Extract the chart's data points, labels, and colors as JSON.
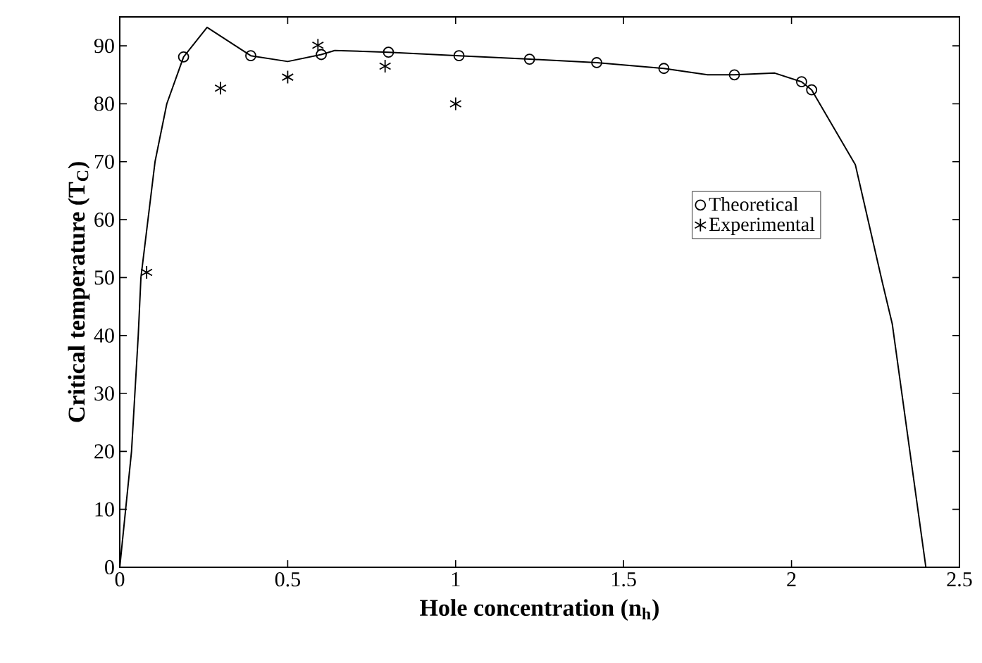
{
  "chart_data": {
    "type": "scatter",
    "xlabel": "Hole concentration (n$_{h}$)",
    "ylabel": "Critical temperature (T$_{C}$)",
    "xlim": [
      0,
      2.5
    ],
    "ylim": [
      0,
      95
    ],
    "xticks": [
      0,
      0.5,
      1,
      1.5,
      2,
      2.5
    ],
    "yticks": [
      0,
      10,
      20,
      30,
      40,
      50,
      60,
      70,
      80,
      90
    ],
    "legend": "right",
    "grid": false,
    "series": [
      {
        "type": "line",
        "color": "#000000",
        "marker": "none",
        "x": [
          0,
          0.035,
          0.055,
          0.063,
          0.105,
          0.14,
          0.19,
          0.26,
          0.39,
          0.5,
          0.6,
          0.64,
          0.8,
          1.01,
          1.22,
          1.42,
          1.62,
          1.75,
          1.83,
          1.95,
          2.03,
          2.06,
          2.19,
          2.27,
          2.3,
          2.4
        ],
        "values": [
          0,
          20,
          40,
          50,
          70,
          80,
          88.1,
          93.2,
          88.3,
          87.3,
          88.5,
          89.2,
          88.9,
          88.3,
          87.7,
          87.1,
          86.1,
          85.0,
          85.0,
          85.3,
          83.8,
          82.4,
          69.5,
          49.3,
          42,
          0
        ]
      },
      {
        "name": "Theoretical",
        "color": "#000000",
        "marker": "circle",
        "x": [
          0.19,
          0.39,
          0.6,
          0.8,
          1.01,
          1.22,
          1.42,
          1.62,
          1.83,
          2.03,
          2.06
        ],
        "values": [
          88.1,
          88.3,
          88.5,
          88.9,
          88.3,
          87.7,
          87.1,
          86.1,
          85.0,
          83.8,
          82.4
        ]
      },
      {
        "name": "Experimental",
        "color": "#000000",
        "marker": "cross",
        "x": [
          0.08,
          0.3,
          0.5,
          0.59,
          0.79,
          1.0
        ],
        "values": [
          50.9,
          82.7,
          84.6,
          90.1,
          86.5,
          80.0
        ]
      }
    ]
  }
}
